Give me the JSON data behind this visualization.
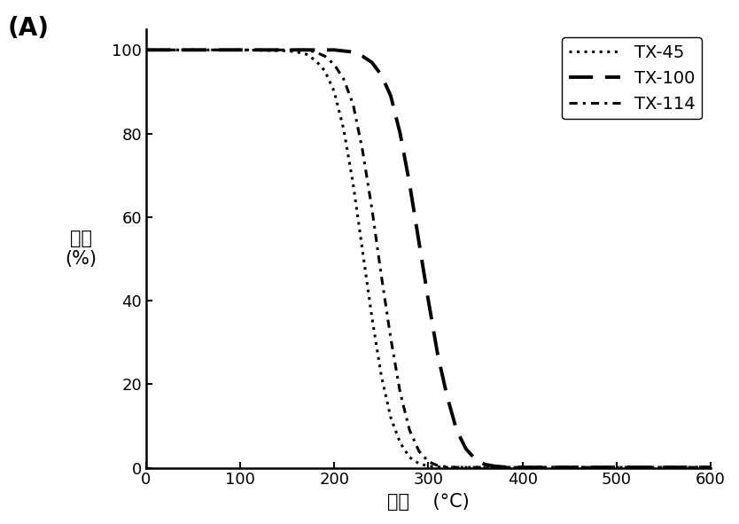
{
  "xlabel": "温度    (°C)",
  "ylabel": "重量\n(%)",
  "xlim": [
    0,
    600
  ],
  "ylim": [
    0,
    105
  ],
  "xticks": [
    0,
    100,
    200,
    300,
    400,
    500,
    600
  ],
  "yticks": [
    0,
    20,
    40,
    60,
    80,
    100
  ],
  "background_color": "#ffffff",
  "series": [
    {
      "label": "TX-45",
      "linestyle": "dotted",
      "color": "#000000",
      "linewidth": 2.2,
      "x": [
        0,
        100,
        150,
        160,
        170,
        180,
        190,
        200,
        210,
        220,
        230,
        240,
        250,
        260,
        270,
        280,
        290,
        300,
        310,
        320,
        600
      ],
      "y": [
        100,
        100,
        99.8,
        99.5,
        99.0,
        97.5,
        95.0,
        90.0,
        81.0,
        68.0,
        52.0,
        36.0,
        22.0,
        12.0,
        6.0,
        2.5,
        1.0,
        0.4,
        0.2,
        0.1,
        0.1
      ]
    },
    {
      "label": "TX-100",
      "linestyle": "dashed",
      "color": "#000000",
      "linewidth": 2.8,
      "x": [
        0,
        100,
        200,
        220,
        230,
        240,
        250,
        260,
        270,
        280,
        290,
        300,
        310,
        320,
        330,
        340,
        350,
        360,
        370,
        380,
        390,
        400,
        600
      ],
      "y": [
        100,
        100,
        100,
        99.5,
        98.5,
        97.0,
        94.0,
        89.0,
        80.0,
        68.0,
        54.0,
        40.0,
        27.0,
        17.0,
        9.0,
        4.5,
        2.0,
        0.8,
        0.4,
        0.2,
        0.1,
        0.1,
        0.1
      ]
    },
    {
      "label": "TX-114",
      "linestyle": "dashdot",
      "color": "#000000",
      "linewidth": 2.2,
      "x": [
        0,
        100,
        170,
        180,
        190,
        200,
        210,
        220,
        230,
        240,
        250,
        260,
        270,
        280,
        290,
        300,
        310,
        320,
        330,
        600
      ],
      "y": [
        100,
        100,
        100,
        99.5,
        98.5,
        96.5,
        93.0,
        87.0,
        76.0,
        62.0,
        46.0,
        31.0,
        18.0,
        9.0,
        4.0,
        1.5,
        0.5,
        0.2,
        0.1,
        0.1
      ]
    }
  ],
  "legend_loc": "upper right",
  "legend_fontsize": 14,
  "tick_fontsize": 13,
  "label_fontsize": 15,
  "panel_label": "(A)",
  "panel_label_fontsize": 20
}
